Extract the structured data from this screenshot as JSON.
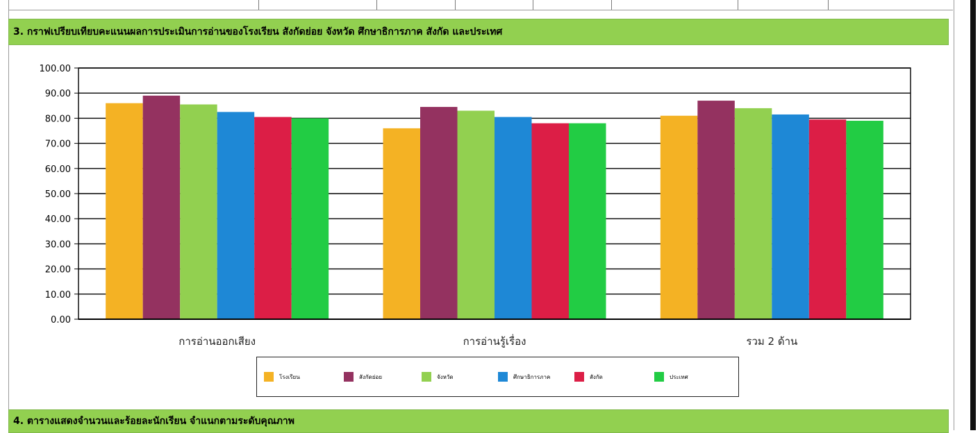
{
  "section3_header": "3. กราฟเปรียบเทียบคะแนนผลการประเมินการอ่านของโรงเรียน สังกัดย่อย จังหวัด ศึกษาธิการภาค สังกัด และประเทศ",
  "section4_header": "4. ตารางแสดงจำนวนและร้อยละนักเรียน จำแนกตามระดับคุณภาพ",
  "chart_data": {
    "type": "bar",
    "categories": [
      "การอ่านออกเสียง",
      "การอ่านรู้เรื่อง",
      "รวม 2 ด้าน"
    ],
    "ylim": [
      0,
      100
    ],
    "yticks": [
      "0.00",
      "10.00",
      "20.00",
      "30.00",
      "40.00",
      "50.00",
      "60.00",
      "70.00",
      "80.00",
      "90.00",
      "100.00"
    ],
    "grid": true,
    "legend_position": "bottom",
    "series": [
      {
        "name": "โรงเรียน",
        "color": "#f4b224",
        "values": [
          86,
          76,
          81
        ]
      },
      {
        "name": "สังกัดย่อย",
        "color": "#943260",
        "values": [
          89,
          84.5,
          87
        ]
      },
      {
        "name": "จังหวัด",
        "color": "#92d050",
        "values": [
          85.5,
          83,
          84
        ]
      },
      {
        "name": "ศึกษาธิการภาค",
        "color": "#1e88d6",
        "values": [
          82.5,
          80.5,
          81.5
        ]
      },
      {
        "name": "สังกัด",
        "color": "#dc1e46",
        "values": [
          80.5,
          78,
          79.5
        ]
      },
      {
        "name": "ประเทศ",
        "color": "#22cc44",
        "values": [
          80,
          78,
          79
        ]
      }
    ]
  }
}
